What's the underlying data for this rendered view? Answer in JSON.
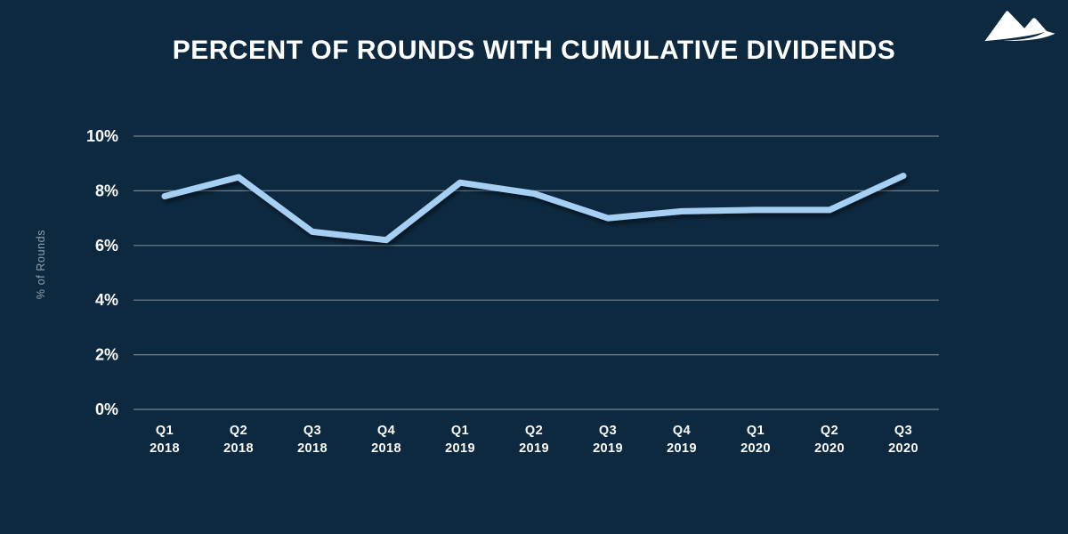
{
  "header": {
    "title": "PERCENT OF ROUNDS WITH CUMULATIVE DIVIDENDS",
    "logo": "mountain-logo"
  },
  "colors": {
    "background": "#0d2940",
    "line": "#a6cff4",
    "grid": "#95a2ac",
    "tick_text": "#ffffff",
    "axis_label_text": "#90a0ac",
    "logo": "#ffffff"
  },
  "chart_data": {
    "type": "line",
    "title": "PERCENT OF ROUNDS WITH CUMULATIVE DIVIDENDS",
    "xlabel": "",
    "ylabel": "% of Rounds",
    "categories": [
      "Q1 2018",
      "Q2 2018",
      "Q3 2018",
      "Q4 2018",
      "Q1 2019",
      "Q2 2019",
      "Q3 2019",
      "Q4 2019",
      "Q1 2020",
      "Q2 2020",
      "Q3 2020"
    ],
    "series": [
      {
        "name": "% of rounds with cumulative dividends",
        "values": [
          7.8,
          8.5,
          6.5,
          6.2,
          8.3,
          7.9,
          7.0,
          7.25,
          7.3,
          7.3,
          8.55
        ]
      }
    ],
    "ylim": [
      0,
      10
    ],
    "yticks": [
      0,
      2,
      4,
      6,
      8,
      10
    ],
    "ytick_suffix": "%",
    "grid": "horizontal",
    "legend": "none"
  }
}
